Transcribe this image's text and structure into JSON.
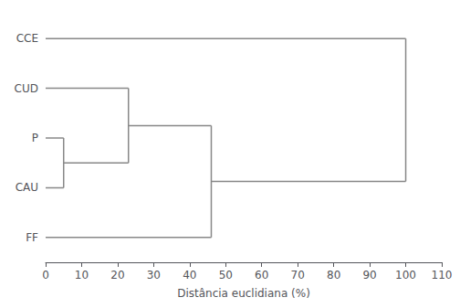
{
  "chart_data": {
    "type": "dendrogram",
    "leaves": [
      "CCE",
      "CUD",
      "P",
      "CAU",
      "FF"
    ],
    "merges": [
      {
        "clusters": [
          [
            "P"
          ],
          [
            "CAU"
          ]
        ],
        "distance": 5
      },
      {
        "clusters": [
          [
            "CUD"
          ],
          [
            "P",
            "CAU"
          ]
        ],
        "distance": 23
      },
      {
        "clusters": [
          [
            "FF"
          ],
          [
            "CUD",
            "P",
            "CAU"
          ]
        ],
        "distance": 46
      },
      {
        "clusters": [
          [
            "CCE"
          ],
          [
            "FF",
            "CUD",
            "P",
            "CAU"
          ]
        ],
        "distance": 100
      }
    ],
    "xlabel": "Distância euclidiana (%)",
    "xlim": [
      0,
      110
    ],
    "xticks": [
      0,
      10,
      20,
      30,
      40,
      50,
      60,
      70,
      80,
      90,
      100,
      110
    ],
    "color": "#888888",
    "grid": false
  }
}
